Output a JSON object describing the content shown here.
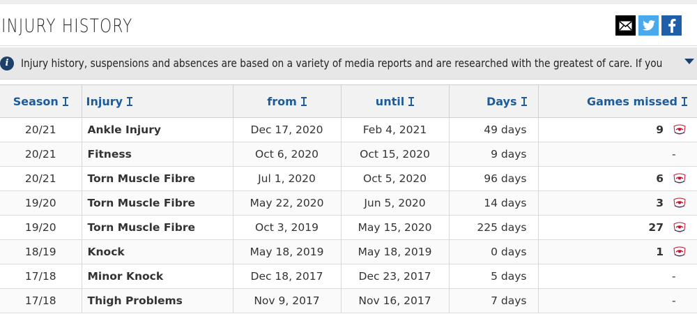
{
  "header": {
    "title": "INJURY HISTORY"
  },
  "share": {
    "mail_icon": "envelope-icon",
    "twitter_icon": "twitter-icon",
    "facebook_icon": "facebook-icon"
  },
  "notice": {
    "text": "Injury history, suspensions and absences are based on a variety of media reports and are researched with the greatest of care. If you should n…"
  },
  "table": {
    "headers": {
      "season": "Season",
      "injury": "Injury",
      "from": "from",
      "until": "until",
      "days": "Days",
      "games": "Games missed"
    },
    "rows": [
      {
        "season": "20/21",
        "injury": "Ankle Injury",
        "from": "Dec 17, 2020",
        "until": "Feb 4, 2021",
        "days": "49 days",
        "games": "9",
        "crest": "club-crest-icon"
      },
      {
        "season": "20/21",
        "injury": "Fitness",
        "from": "Oct 6, 2020",
        "until": "Oct 15, 2020",
        "days": "9 days",
        "games": "-",
        "crest": ""
      },
      {
        "season": "20/21",
        "injury": "Torn Muscle Fibre",
        "from": "Jul 1, 2020",
        "until": "Oct 5, 2020",
        "days": "96 days",
        "games": "6",
        "crest": "club-crest-icon"
      },
      {
        "season": "19/20",
        "injury": "Torn Muscle Fibre",
        "from": "May 22, 2020",
        "until": "Jun 5, 2020",
        "days": "14 days",
        "games": "3",
        "crest": "club-crest-icon"
      },
      {
        "season": "19/20",
        "injury": "Torn Muscle Fibre",
        "from": "Oct 3, 2019",
        "until": "May 15, 2020",
        "days": "225 days",
        "games": "27",
        "crest": "club-crest-icon"
      },
      {
        "season": "18/19",
        "injury": "Knock",
        "from": "May 18, 2019",
        "until": "May 18, 2019",
        "days": "0 days",
        "games": "1",
        "crest": "club-crest-icon"
      },
      {
        "season": "17/18",
        "injury": "Minor Knock",
        "from": "Dec 18, 2017",
        "until": "Dec 23, 2017",
        "days": "5 days",
        "games": "-",
        "crest": ""
      },
      {
        "season": "17/18",
        "injury": "Thigh Problems",
        "from": "Nov 9, 2017",
        "until": "Nov 16, 2017",
        "days": "7 days",
        "games": "-",
        "crest": ""
      }
    ]
  },
  "colors": {
    "header_blue": "#1d5c9c",
    "info_blue": "#1d3f6b",
    "twitter": "#4aa8ec",
    "facebook": "#1f5ea8"
  }
}
